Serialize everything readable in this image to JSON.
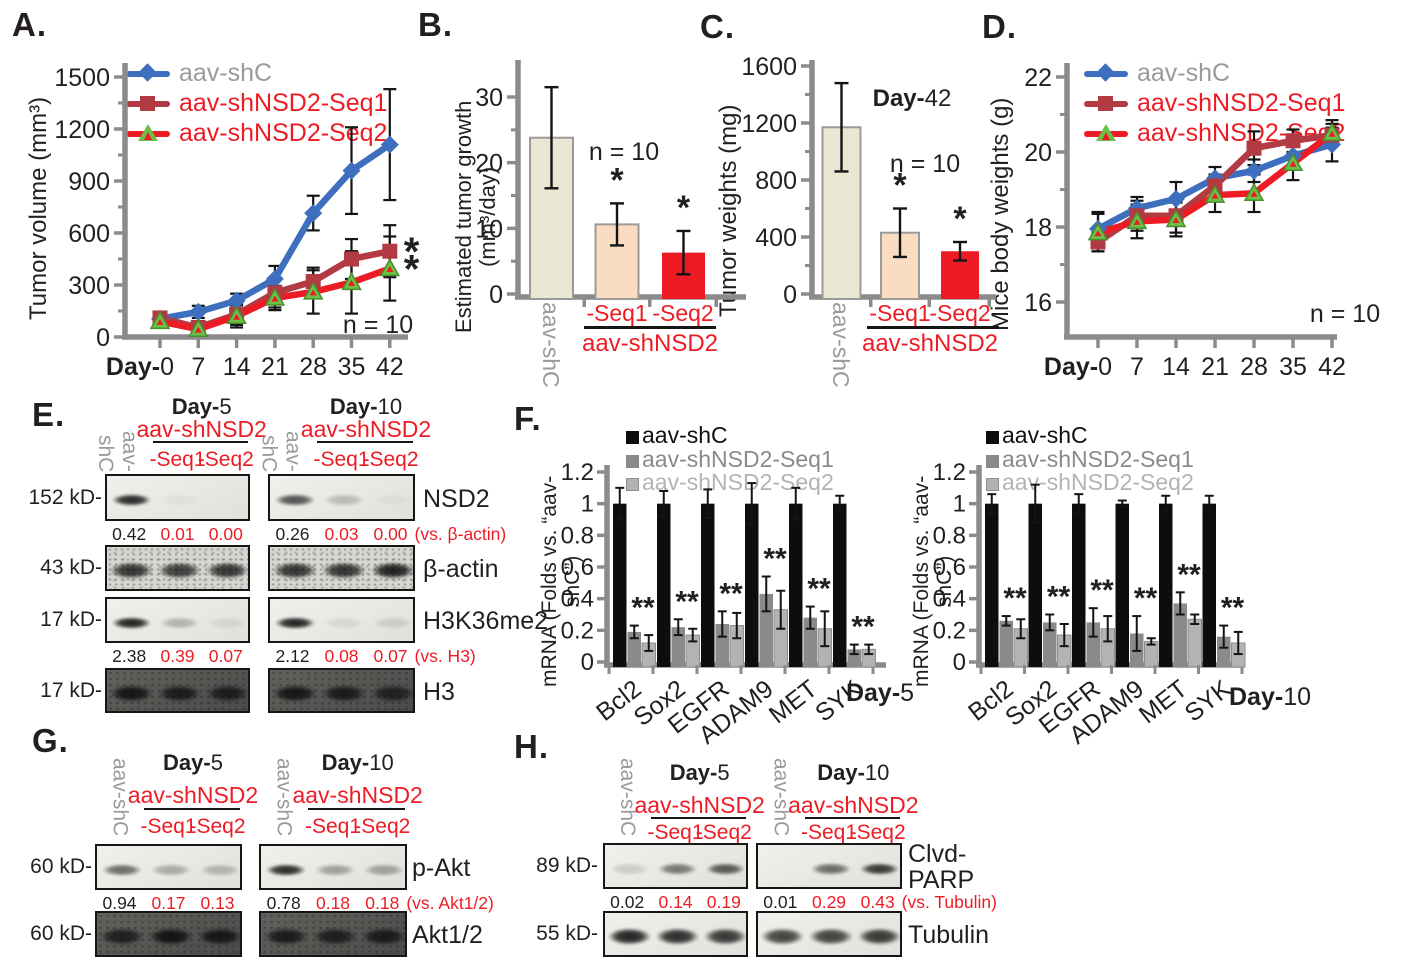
{
  "colors": {
    "axis": "#8b8b8b",
    "black": "#231f20",
    "red": "#ed1c24",
    "dark_red": "#b23a42",
    "blue": "#3e6fbe",
    "green": "#6cbf47",
    "gray_text": "#9a9a9a",
    "beige": "#e9e6d2",
    "peach": "#fadcc3",
    "bar_black": "#0d0d0d",
    "bar_gray": "#8a8a8a",
    "bar_light_gray": "#b3b3b3"
  },
  "panels": {
    "A": {
      "label": "A."
    },
    "B": {
      "label": "B."
    },
    "C": {
      "label": "C."
    },
    "D": {
      "label": "D."
    },
    "E": {
      "label": "E."
    },
    "F": {
      "label": "F."
    },
    "G": {
      "label": "G."
    },
    "H": {
      "label": "H."
    }
  },
  "line_legend": [
    {
      "label": "aav-shC",
      "text_color": "#9a9a9a",
      "line_color": "#3e6fbe",
      "marker": "diamond"
    },
    {
      "label": "aav-shNSD2-Seq1",
      "text_color": "#ed1c24",
      "line_color": "#b23a42",
      "marker": "square"
    },
    {
      "label": "aav-shNSD2-Seq2",
      "text_color": "#ed1c24",
      "line_color": "#ed1c24",
      "marker": "triangle"
    }
  ],
  "bar_legend": [
    {
      "label": "aav-shC",
      "color": "#0d0d0d",
      "text_color": "#111111"
    },
    {
      "label": "aav-shNSD2-Seq1",
      "color": "#8a8a8a",
      "text_color": "#8a8a8a"
    },
    {
      "label": "aav-shNSD2-Seq2",
      "color": "#b3b3b3",
      "text_color": "#b3b3b3"
    }
  ],
  "group_xlabels": {
    "control": "aav-shC",
    "seq1": "-Seq1",
    "seq2": "-Seq2",
    "group": "aav-shNSD2"
  },
  "chart_data": [
    {
      "id": "A",
      "type": "line",
      "ylabel": "Tumor volume (mm³)",
      "xlabel_prefix": "Day-",
      "x": [
        0,
        7,
        14,
        21,
        28,
        35,
        42
      ],
      "ylim": [
        0,
        1500
      ],
      "yticks": [
        0,
        300,
        600,
        900,
        1200,
        1500
      ],
      "legend": [
        "aav-shC",
        "aav-shNSD2-Seq1",
        "aav-shNSD2-Seq2"
      ],
      "series": [
        {
          "name": "aav-shC",
          "values": [
            105,
            145,
            210,
            335,
            715,
            960,
            1110
          ],
          "errors": [
            20,
            35,
            40,
            75,
            100,
            250,
            320
          ]
        },
        {
          "name": "aav-shNSD2-Seq1",
          "values": [
            110,
            55,
            130,
            255,
            320,
            450,
            495
          ],
          "errors": [
            25,
            25,
            60,
            85,
            80,
            115,
            150
          ],
          "sig": "*"
        },
        {
          "name": "aav-shNSD2-Seq2",
          "values": [
            90,
            45,
            120,
            225,
            260,
            315,
            395
          ],
          "errors": [
            25,
            20,
            65,
            70,
            125,
            180,
            185
          ],
          "sig": "*"
        }
      ],
      "annotation": "n = 10"
    },
    {
      "id": "B",
      "type": "bar",
      "ylabel": "Estimated tumor growth (mm³/day)",
      "categories": [
        "aav-shC",
        "-Seq1",
        "-Seq2"
      ],
      "values": [
        23.8,
        10.6,
        6.3
      ],
      "errors": [
        7.7,
        3.2,
        3.3
      ],
      "sig": [
        null,
        "*",
        "*"
      ],
      "ylim": [
        0,
        35
      ],
      "yticks": [
        0,
        10,
        20,
        30
      ],
      "yticks_minor": [
        5,
        15,
        25
      ],
      "bar_colors": [
        "#e9e6d2",
        "#fadcc3",
        "#ed1c24"
      ],
      "annotation": "n = 10",
      "group_label": "aav-shNSD2"
    },
    {
      "id": "C",
      "type": "bar",
      "ylabel": "Tumor weights (mg)",
      "title": "Day-42",
      "categories": [
        "aav-shC",
        "-Seq1",
        "-Seq2"
      ],
      "values": [
        1170,
        430,
        300
      ],
      "errors": [
        310,
        170,
        65
      ],
      "sig": [
        null,
        "*",
        "*"
      ],
      "ylim": [
        0,
        1600
      ],
      "yticks": [
        0,
        400,
        800,
        1200,
        1600
      ],
      "yticks_minor": [
        200,
        600,
        1000,
        1400
      ],
      "bar_colors": [
        "#e9e6d2",
        "#fadcc3",
        "#ed1c24"
      ],
      "annotation": "n = 10",
      "group_label": "aav-shNSD2"
    },
    {
      "id": "D",
      "type": "line",
      "ylabel": "Mice body weights (g)",
      "xlabel_prefix": "Day-",
      "x": [
        0,
        7,
        14,
        21,
        28,
        35,
        42
      ],
      "ylim": [
        15,
        22
      ],
      "yticks": [
        16,
        18,
        20,
        22
      ],
      "yticks_minor": [
        17,
        19,
        21
      ],
      "legend": [
        "aav-shC",
        "aav-shNSD2-Seq1",
        "aav-shNSD2-Seq2"
      ],
      "series": [
        {
          "name": "aav-shC",
          "values": [
            17.95,
            18.5,
            18.75,
            19.3,
            19.5,
            19.9,
            20.2
          ],
          "errors": [
            0.45,
            0.3,
            0.45,
            0.3,
            0.3,
            0.3,
            0.45
          ]
        },
        {
          "name": "aav-shNSD2-Seq1",
          "values": [
            17.6,
            18.3,
            18.3,
            19.1,
            20.1,
            20.3,
            20.45
          ],
          "errors": [
            0.25,
            0.4,
            0.45,
            0.3,
            0.45,
            0.3,
            0.3
          ]
        },
        {
          "name": "aav-shNSD2-Seq2",
          "values": [
            17.85,
            18.15,
            18.2,
            18.85,
            18.9,
            19.7,
            20.5
          ],
          "errors": [
            0.5,
            0.45,
            0.45,
            0.45,
            0.5,
            0.45,
            0.35
          ]
        }
      ],
      "annotation": "n = 10"
    },
    {
      "id": "F1",
      "type": "grouped_bar",
      "day_label": "Day-5",
      "ylabel": "mRNA (Folds vs. “aav-shC”)",
      "categories": [
        "Bcl2",
        "Sox2",
        "EGFR",
        "ADAM9",
        "MET",
        "SYK"
      ],
      "ylim": [
        0,
        1.2
      ],
      "yticks": [
        0,
        0.2,
        0.4,
        0.6,
        0.8,
        1,
        1.2
      ],
      "legend": [
        "aav-shC",
        "aav-shNSD2-Seq1",
        "aav-shNSD2-Seq2"
      ],
      "series": [
        {
          "name": "aav-shC",
          "values": [
            1,
            1,
            1,
            1,
            1,
            1
          ],
          "errors": [
            0.1,
            0.08,
            0.09,
            0.13,
            0.1,
            0.05
          ]
        },
        {
          "name": "aav-shNSD2-Seq1",
          "values": [
            0.19,
            0.22,
            0.24,
            0.43,
            0.28,
            0.08
          ],
          "errors": [
            0.04,
            0.05,
            0.08,
            0.11,
            0.07,
            0.03
          ]
        },
        {
          "name": "aav-shNSD2-Seq2",
          "values": [
            0.12,
            0.17,
            0.23,
            0.33,
            0.21,
            0.08
          ],
          "errors": [
            0.05,
            0.04,
            0.08,
            0.12,
            0.11,
            0.03
          ]
        }
      ],
      "sig_per_category": "**"
    },
    {
      "id": "F2",
      "type": "grouped_bar",
      "day_label": "Day-10",
      "ylabel": "mRNA (Folds vs. “aav-shC”)",
      "categories": [
        "Bcl2",
        "Sox2",
        "EGFR",
        "ADAM9",
        "MET",
        "SYK"
      ],
      "ylim": [
        0,
        1.2
      ],
      "yticks": [
        0,
        0.2,
        0.4,
        0.6,
        0.8,
        1,
        1.2
      ],
      "legend": [
        "aav-shC",
        "aav-shNSD2-Seq1",
        "aav-shNSD2-Seq2"
      ],
      "series": [
        {
          "name": "aav-shC",
          "values": [
            1,
            1,
            1,
            1,
            1,
            1
          ],
          "errors": [
            0.06,
            0.12,
            0.06,
            0.02,
            0.05,
            0.05
          ]
        },
        {
          "name": "aav-shNSD2-Seq1",
          "values": [
            0.26,
            0.25,
            0.25,
            0.18,
            0.37,
            0.16
          ],
          "errors": [
            0.03,
            0.05,
            0.09,
            0.11,
            0.07,
            0.07
          ]
        },
        {
          "name": "aav-shNSD2-Seq2",
          "values": [
            0.21,
            0.17,
            0.21,
            0.13,
            0.27,
            0.12
          ],
          "errors": [
            0.06,
            0.07,
            0.08,
            0.02,
            0.03,
            0.07
          ]
        }
      ],
      "sig_per_category": "**"
    }
  ],
  "blots": {
    "E": {
      "control": "aav-shC",
      "treatment": "aav-shNSD2",
      "lanes": [
        "-Seq1",
        "-Seq2"
      ],
      "groups": [
        {
          "day": "Day-5"
        },
        {
          "day": "Day-10"
        }
      ],
      "rows": [
        {
          "kd": "152 kD-",
          "protein": [
            "NSD2"
          ],
          "style": "light",
          "bands": [
            [
              0.92,
              0.04,
              0.0
            ],
            [
              0.72,
              0.22,
              0.04
            ]
          ],
          "quant": {
            "values": [
              [
                "0.42",
                "0.01",
                "0.00"
              ],
              [
                "0.26",
                "0.03",
                "0.00"
              ]
            ],
            "suffix": "(vs. β-actin)"
          }
        },
        {
          "kd": "43 kD-",
          "protein": [
            "β-actin"
          ],
          "style": "noisy",
          "thick": true,
          "bands": [
            [
              0.85,
              0.8,
              0.85
            ],
            [
              0.85,
              0.85,
              0.95
            ]
          ]
        },
        {
          "kd": "17 kD-",
          "protein": [
            "H3K36me2"
          ],
          "style": "light",
          "bands": [
            [
              0.95,
              0.25,
              0.08
            ],
            [
              0.95,
              0.08,
              0.12
            ]
          ],
          "quant": {
            "values": [
              [
                "2.38",
                "0.39",
                "0.07"
              ],
              [
                "2.12",
                "0.08",
                "0.07"
              ]
            ],
            "suffix": "(vs. H3)"
          }
        },
        {
          "kd": "17 kD-",
          "protein": [
            "H3"
          ],
          "style": "dark",
          "thick": true,
          "bands": [
            [
              0.92,
              0.85,
              0.8
            ],
            [
              0.92,
              0.85,
              0.75
            ]
          ]
        }
      ]
    },
    "G": {
      "control": "aav-shC",
      "treatment": "aav-shNSD2",
      "lanes": [
        "-Seq1",
        "-Seq2"
      ],
      "groups": [
        {
          "day": "Day-5"
        },
        {
          "day": "Day-10"
        }
      ],
      "rows": [
        {
          "kd": "60 kD-",
          "protein": [
            "p-Akt"
          ],
          "style": "light",
          "bands": [
            [
              0.6,
              0.3,
              0.25
            ],
            [
              0.9,
              0.35,
              0.35
            ]
          ],
          "quant": {
            "values": [
              [
                "0.94",
                "0.17",
                "0.13"
              ],
              [
                "0.78",
                "0.18",
                "0.18"
              ]
            ],
            "suffix": "(vs. Akt1/2)"
          }
        },
        {
          "kd": "60 kD-",
          "protein": [
            "Akt1/2"
          ],
          "style": "dark",
          "thick": true,
          "bands": [
            [
              0.8,
              0.95,
              0.9
            ],
            [
              0.85,
              0.8,
              0.85
            ]
          ]
        }
      ]
    },
    "H": {
      "control": "aav-shC",
      "treatment": "aav-shNSD2",
      "lanes": [
        "-Seq1",
        "-Seq2"
      ],
      "groups": [
        {
          "day": "Day-5"
        },
        {
          "day": "Day-10"
        }
      ],
      "rows": [
        {
          "kd": "89 kD-",
          "protein": [
            "Clvd-",
            "PARP"
          ],
          "style": "light",
          "bands": [
            [
              0.15,
              0.55,
              0.7
            ],
            [
              0.0,
              0.6,
              0.85
            ]
          ],
          "quant": {
            "values": [
              [
                "0.02",
                "0.14",
                "0.19"
              ],
              [
                "0.01",
                "0.29",
                "0.43"
              ]
            ],
            "suffix": "(vs. Tubulin)"
          }
        },
        {
          "kd": "55 kD-",
          "protein": [
            "Tubulin"
          ],
          "style": "light",
          "thick": true,
          "bands": [
            [
              0.95,
              0.9,
              0.85
            ],
            [
              0.8,
              0.8,
              0.85
            ]
          ]
        }
      ]
    }
  }
}
